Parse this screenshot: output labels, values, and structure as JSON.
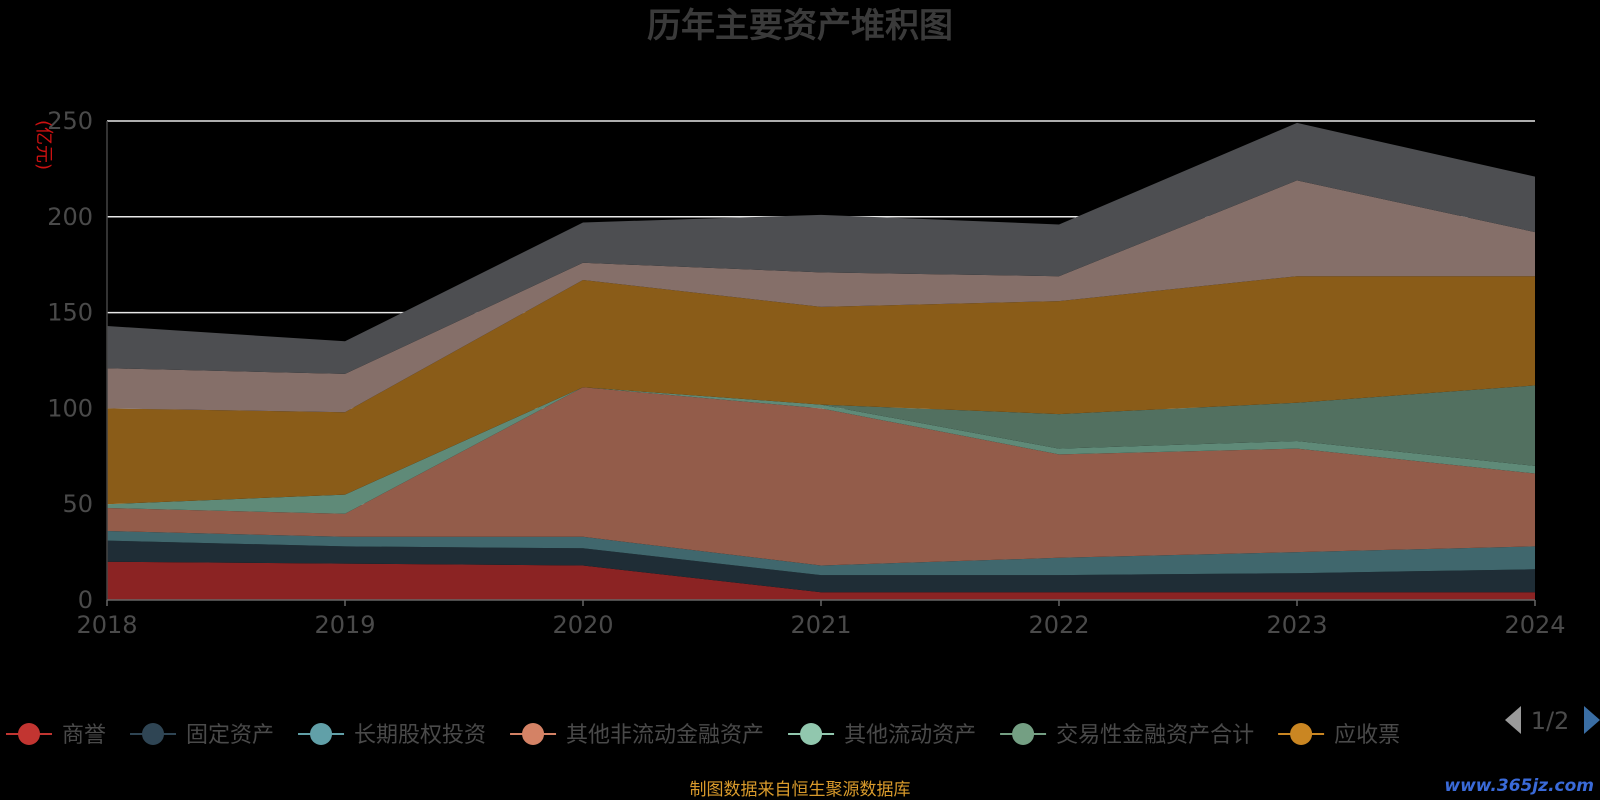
{
  "chart_data": {
    "type": "area",
    "stacked": true,
    "title": "历年主要资产堆积图",
    "unit_label": "(亿元)",
    "x": [
      "2018",
      "2019",
      "2020",
      "2021",
      "2022",
      "2023",
      "2024"
    ],
    "ylim": [
      0,
      250
    ],
    "yticks": [
      "0",
      "50",
      "100",
      "150",
      "200",
      "250"
    ],
    "grid": true,
    "series": [
      {
        "name": "商誉",
        "color": "#c23531",
        "fill": "#8b2323",
        "values": [
          20,
          19,
          18,
          4,
          4,
          4,
          4
        ]
      },
      {
        "name": "固定资产",
        "color": "#2f4554",
        "fill": "#1f2d36",
        "values": [
          11,
          9,
          9,
          9,
          9,
          10,
          12
        ]
      },
      {
        "name": "长期股权投资",
        "color": "#61a0a8",
        "fill": "#40676d",
        "values": [
          5,
          5,
          6,
          5,
          9,
          11,
          12
        ]
      },
      {
        "name": "其他非流动金融资产",
        "color": "#d48265",
        "fill": "#935c4a",
        "values": [
          12,
          12,
          78,
          82,
          54,
          54,
          38
        ]
      },
      {
        "name": "其他流动资产",
        "color": "#91c7ae",
        "fill": "#5f8a78",
        "values": [
          2,
          10,
          0,
          2,
          3,
          4,
          4
        ]
      },
      {
        "name": "交易性金融资产合计",
        "color": "#749f83",
        "fill": "#527060",
        "values": [
          0,
          0,
          0,
          0,
          18,
          20,
          42
        ]
      },
      {
        "name": "应收票",
        "color": "#ca8622",
        "fill": "#8a5c18",
        "values": [
          50,
          43,
          56,
          51,
          59,
          66,
          57
        ]
      },
      {
        "name": "",
        "color": "#bda29a",
        "fill": "#856f69",
        "values": [
          21,
          20,
          9,
          18,
          13,
          50,
          23
        ]
      },
      {
        "name": "",
        "color": "#6e7074",
        "fill": "#4d4e51",
        "values": [
          22,
          17,
          21,
          30,
          27,
          30,
          29
        ]
      }
    ],
    "legend": {
      "placement": "bottom",
      "page_indicator": "1/2"
    }
  },
  "footer": {
    "source_note": "制图数据来自恒生聚源数据库",
    "watermark": "www.365jz.com"
  }
}
